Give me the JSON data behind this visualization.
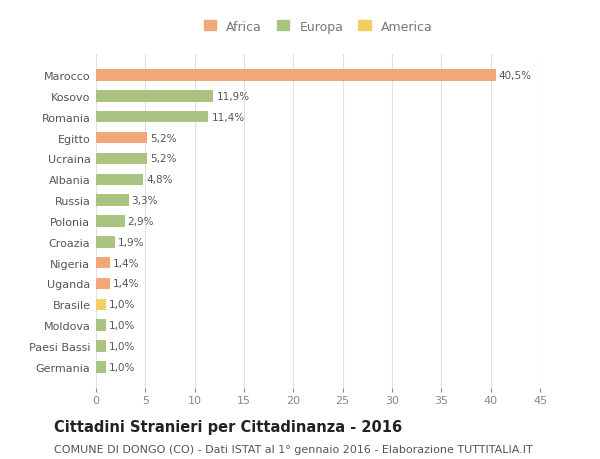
{
  "categories": [
    "Marocco",
    "Kosovo",
    "Romania",
    "Egitto",
    "Ucraina",
    "Albania",
    "Russia",
    "Polonia",
    "Croazia",
    "Nigeria",
    "Uganda",
    "Brasile",
    "Moldova",
    "Paesi Bassi",
    "Germania"
  ],
  "values": [
    40.5,
    11.9,
    11.4,
    5.2,
    5.2,
    4.8,
    3.3,
    2.9,
    1.9,
    1.4,
    1.4,
    1.0,
    1.0,
    1.0,
    1.0
  ],
  "labels": [
    "40,5%",
    "11,9%",
    "11,4%",
    "5,2%",
    "5,2%",
    "4,8%",
    "3,3%",
    "2,9%",
    "1,9%",
    "1,4%",
    "1,4%",
    "1,0%",
    "1,0%",
    "1,0%",
    "1,0%"
  ],
  "continent": [
    "Africa",
    "Europa",
    "Europa",
    "Africa",
    "Europa",
    "Europa",
    "Europa",
    "Europa",
    "Europa",
    "Africa",
    "Africa",
    "America",
    "Europa",
    "Europa",
    "Europa"
  ],
  "colors": {
    "Africa": "#F0A878",
    "Europa": "#A8C480",
    "America": "#F0D060"
  },
  "background_color": "#ffffff",
  "plot_bg_color": "#ffffff",
  "grid_color": "#e0e0e0",
  "xlim": [
    0,
    45
  ],
  "xticks": [
    0,
    5,
    10,
    15,
    20,
    25,
    30,
    35,
    40,
    45
  ],
  "title": "Cittadini Stranieri per Cittadinanza - 2016",
  "subtitle": "COMUNE DI DONGO (CO) - Dati ISTAT al 1° gennaio 2016 - Elaborazione TUTTITALIA.IT",
  "title_fontsize": 10.5,
  "subtitle_fontsize": 8,
  "label_fontsize": 7.5,
  "tick_fontsize": 8,
  "legend_fontsize": 9,
  "legend_labels": [
    "Africa",
    "Europa",
    "America"
  ],
  "legend_colors": [
    "#F0A878",
    "#A8C480",
    "#F0D060"
  ]
}
